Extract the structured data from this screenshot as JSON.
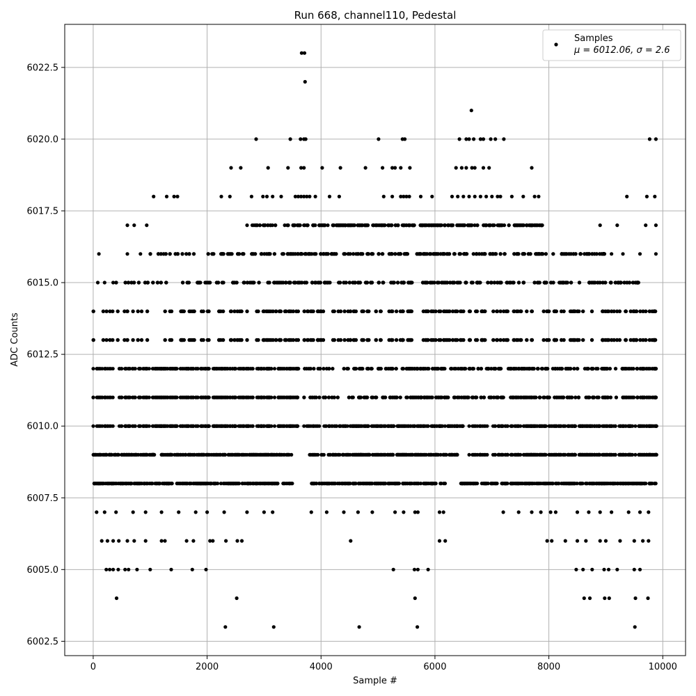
{
  "chart_data": {
    "type": "scatter",
    "title": "Run 668, channel110, Pedestal",
    "xlabel": "Sample #",
    "ylabel": "ADC Counts",
    "xlim": [
      -500,
      10400
    ],
    "ylim": [
      6002.0,
      6024.0
    ],
    "xticks": [
      0,
      2000,
      4000,
      6000,
      8000,
      10000
    ],
    "yticks": [
      6002.5,
      6005.0,
      6007.5,
      6010.0,
      6012.5,
      6015.0,
      6017.5,
      6020.0,
      6022.5
    ],
    "xtick_labels": [
      "0",
      "2000",
      "4000",
      "6000",
      "8000",
      "10000"
    ],
    "ytick_labels": [
      "6002.5",
      "6005.0",
      "6007.5",
      "6010.0",
      "6012.5",
      "6015.0",
      "6017.5",
      "6020.0",
      "6022.5"
    ],
    "grid": true,
    "legend": {
      "placement": "top-right",
      "entries": [
        {
          "label": "Samples",
          "sublabel": "μ = 6012.06, σ = 2.6"
        }
      ]
    },
    "series": [
      {
        "name": "Samples",
        "color": "#000000",
        "marker": "circle",
        "bands": [
          {
            "y": 6008,
            "ranges": [
              [
                0,
                3500
              ],
              [
                3800,
                6200
              ],
              [
                6400,
                9900
              ]
            ]
          },
          {
            "y": 6009,
            "ranges": [
              [
                0,
                3500
              ],
              [
                3800,
                6400
              ],
              [
                6600,
                9900
              ]
            ]
          },
          {
            "y": 6010,
            "ranges": [
              [
                0,
                3600
              ],
              [
                3700,
                6500
              ],
              [
                6600,
                9900
              ]
            ]
          },
          {
            "y": 6011,
            "ranges": [
              [
                0,
                3600
              ],
              [
                3700,
                9900
              ]
            ]
          },
          {
            "y": 6012,
            "ranges": [
              [
                0,
                3600
              ],
              [
                3600,
                9900
              ]
            ]
          },
          {
            "y": 6013,
            "ranges": [
              [
                0,
                9900
              ]
            ]
          },
          {
            "y": 6014,
            "ranges": [
              [
                0,
                9900
              ]
            ]
          },
          {
            "y": 6015,
            "ranges": [
              [
                400,
                9600
              ]
            ]
          },
          {
            "y": 6016,
            "ranges": [
              [
                1000,
                9000
              ]
            ]
          },
          {
            "y": 6017,
            "ranges": [
              [
                2700,
                7900
              ]
            ]
          }
        ],
        "points": [
          [
            100,
            6016
          ],
          [
            80,
            6015
          ],
          [
            200,
            6015
          ],
          [
            350,
            6015
          ],
          [
            600,
            6016
          ],
          [
            600,
            6017
          ],
          [
            720,
            6017
          ],
          [
            830,
            6016
          ],
          [
            940,
            6017
          ],
          [
            9880,
            6016
          ],
          [
            9880,
            6017
          ],
          [
            9700,
            6017
          ],
          [
            9600,
            6016
          ],
          [
            9300,
            6016
          ],
          [
            9200,
            6017
          ],
          [
            9100,
            6016
          ],
          [
            8900,
            6017
          ],
          [
            1060,
            6018
          ],
          [
            1290,
            6018
          ],
          [
            1420,
            6018
          ],
          [
            1480,
            6018
          ],
          [
            2250,
            6018
          ],
          [
            2400,
            6018
          ],
          [
            2780,
            6018
          ],
          [
            2980,
            6018
          ],
          [
            3050,
            6018
          ],
          [
            3150,
            6018
          ],
          [
            3300,
            6018
          ],
          [
            3550,
            6018
          ],
          [
            3600,
            6018
          ],
          [
            3650,
            6018
          ],
          [
            3700,
            6018
          ],
          [
            3750,
            6018
          ],
          [
            3800,
            6018
          ],
          [
            3900,
            6018
          ],
          [
            4150,
            6018
          ],
          [
            4320,
            6018
          ],
          [
            5100,
            6018
          ],
          [
            5250,
            6018
          ],
          [
            5400,
            6018
          ],
          [
            5450,
            6018
          ],
          [
            5500,
            6018
          ],
          [
            5550,
            6018
          ],
          [
            5750,
            6018
          ],
          [
            5950,
            6018
          ],
          [
            6300,
            6018
          ],
          [
            6400,
            6018
          ],
          [
            6500,
            6018
          ],
          [
            6600,
            6018
          ],
          [
            6700,
            6018
          ],
          [
            6800,
            6018
          ],
          [
            6900,
            6018
          ],
          [
            7000,
            6018
          ],
          [
            7100,
            6018
          ],
          [
            7150,
            6018
          ],
          [
            7350,
            6018
          ],
          [
            7550,
            6018
          ],
          [
            7750,
            6018
          ],
          [
            7820,
            6018
          ],
          [
            9370,
            6018
          ],
          [
            9720,
            6018
          ],
          [
            9860,
            6018
          ],
          [
            2420,
            6019
          ],
          [
            2590,
            6019
          ],
          [
            3070,
            6019
          ],
          [
            3420,
            6019
          ],
          [
            3650,
            6019
          ],
          [
            3700,
            6019
          ],
          [
            4020,
            6019
          ],
          [
            4340,
            6019
          ],
          [
            4780,
            6019
          ],
          [
            5080,
            6019
          ],
          [
            5250,
            6019
          ],
          [
            5300,
            6019
          ],
          [
            5400,
            6019
          ],
          [
            5560,
            6019
          ],
          [
            6370,
            6019
          ],
          [
            6470,
            6019
          ],
          [
            6550,
            6019
          ],
          [
            6650,
            6019
          ],
          [
            6700,
            6019
          ],
          [
            6850,
            6019
          ],
          [
            6950,
            6019
          ],
          [
            7700,
            6019
          ],
          [
            2860,
            6020
          ],
          [
            3460,
            6020
          ],
          [
            3640,
            6020
          ],
          [
            3700,
            6020
          ],
          [
            3730,
            6020
          ],
          [
            5010,
            6020
          ],
          [
            5430,
            6020
          ],
          [
            5470,
            6020
          ],
          [
            6430,
            6020
          ],
          [
            6550,
            6020
          ],
          [
            6600,
            6020
          ],
          [
            6680,
            6020
          ],
          [
            6800,
            6020
          ],
          [
            6850,
            6020
          ],
          [
            6980,
            6020
          ],
          [
            7060,
            6020
          ],
          [
            7210,
            6020
          ],
          [
            9770,
            6020
          ],
          [
            9880,
            6020
          ],
          [
            6640,
            6021
          ],
          [
            3720,
            6022
          ],
          [
            3660,
            6023
          ],
          [
            3710,
            6023
          ],
          [
            60,
            6007
          ],
          [
            200,
            6007
          ],
          [
            400,
            6007
          ],
          [
            700,
            6007
          ],
          [
            920,
            6007
          ],
          [
            1200,
            6007
          ],
          [
            1500,
            6007
          ],
          [
            1800,
            6007
          ],
          [
            2000,
            6007
          ],
          [
            2300,
            6007
          ],
          [
            2700,
            6007
          ],
          [
            3000,
            6007
          ],
          [
            3150,
            6007
          ],
          [
            3830,
            6007
          ],
          [
            4100,
            6007
          ],
          [
            4400,
            6007
          ],
          [
            4650,
            6007
          ],
          [
            4900,
            6007
          ],
          [
            5300,
            6007
          ],
          [
            5450,
            6007
          ],
          [
            5650,
            6007
          ],
          [
            5700,
            6007
          ],
          [
            6080,
            6007
          ],
          [
            6150,
            6007
          ],
          [
            7200,
            6007
          ],
          [
            7470,
            6007
          ],
          [
            7700,
            6007
          ],
          [
            7860,
            6007
          ],
          [
            8030,
            6007
          ],
          [
            8120,
            6007
          ],
          [
            8500,
            6007
          ],
          [
            8700,
            6007
          ],
          [
            8900,
            6007
          ],
          [
            9100,
            6007
          ],
          [
            9400,
            6007
          ],
          [
            9600,
            6007
          ],
          [
            9750,
            6007
          ],
          [
            150,
            6006
          ],
          [
            250,
            6006
          ],
          [
            350,
            6006
          ],
          [
            450,
            6006
          ],
          [
            600,
            6006
          ],
          [
            720,
            6006
          ],
          [
            920,
            6006
          ],
          [
            1200,
            6006
          ],
          [
            1260,
            6006
          ],
          [
            1640,
            6006
          ],
          [
            1760,
            6006
          ],
          [
            2050,
            6006
          ],
          [
            2100,
            6006
          ],
          [
            2330,
            6006
          ],
          [
            2530,
            6006
          ],
          [
            2610,
            6006
          ],
          [
            4520,
            6006
          ],
          [
            6080,
            6006
          ],
          [
            6180,
            6006
          ],
          [
            7970,
            6006
          ],
          [
            8050,
            6006
          ],
          [
            8290,
            6006
          ],
          [
            8500,
            6006
          ],
          [
            8650,
            6006
          ],
          [
            8900,
            6006
          ],
          [
            9000,
            6006
          ],
          [
            9250,
            6006
          ],
          [
            9500,
            6006
          ],
          [
            9650,
            6006
          ],
          [
            9750,
            6006
          ],
          [
            230,
            6005
          ],
          [
            290,
            6005
          ],
          [
            350,
            6005
          ],
          [
            440,
            6005
          ],
          [
            560,
            6005
          ],
          [
            620,
            6005
          ],
          [
            770,
            6005
          ],
          [
            1000,
            6005
          ],
          [
            1370,
            6005
          ],
          [
            1740,
            6005
          ],
          [
            1980,
            6005
          ],
          [
            5270,
            6005
          ],
          [
            5640,
            6005
          ],
          [
            5700,
            6005
          ],
          [
            5880,
            6005
          ],
          [
            8480,
            6005
          ],
          [
            8600,
            6005
          ],
          [
            8760,
            6005
          ],
          [
            8970,
            6005
          ],
          [
            9050,
            6005
          ],
          [
            9200,
            6005
          ],
          [
            9500,
            6005
          ],
          [
            9600,
            6005
          ],
          [
            410,
            6004
          ],
          [
            2520,
            6004
          ],
          [
            5650,
            6004
          ],
          [
            8620,
            6004
          ],
          [
            8720,
            6004
          ],
          [
            8980,
            6004
          ],
          [
            9060,
            6004
          ],
          [
            9520,
            6004
          ],
          [
            9740,
            6004
          ],
          [
            2320,
            6003
          ],
          [
            3170,
            6003
          ],
          [
            4670,
            6003
          ],
          [
            5690,
            6003
          ],
          [
            9510,
            6003
          ]
        ]
      }
    ]
  }
}
